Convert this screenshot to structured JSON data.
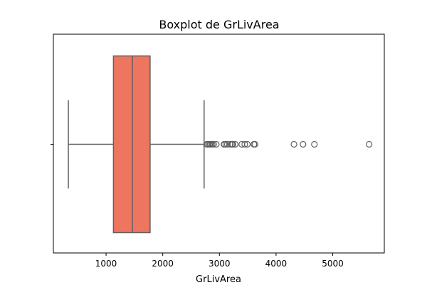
{
  "chart_data": {
    "type": "boxplot",
    "title": "Boxplot de GrLivArea",
    "xlabel": "GrLivArea",
    "ylabel": "",
    "xlim": [
      70,
      5910
    ],
    "xticks": [
      1000,
      2000,
      3000,
      4000,
      5000
    ],
    "xtick_labels": [
      "1000",
      "2000",
      "3000",
      "4000",
      "5000"
    ],
    "orientation": "horizontal",
    "grid": false,
    "box_color": "#ee7560",
    "line_color": "#606060",
    "stats": {
      "whisker_low": 334,
      "q1": 1130,
      "median": 1464,
      "q3": 1777,
      "whisker_high": 2730
    },
    "outliers": [
      2775,
      2782,
      2794,
      2822,
      2828,
      2844,
      2872,
      2898,
      2945,
      3082,
      3086,
      3112,
      3140,
      3194,
      3222,
      3228,
      3238,
      3279,
      3395,
      3447,
      3493,
      3608,
      3627,
      4316,
      4476,
      4676,
      5642
    ]
  }
}
